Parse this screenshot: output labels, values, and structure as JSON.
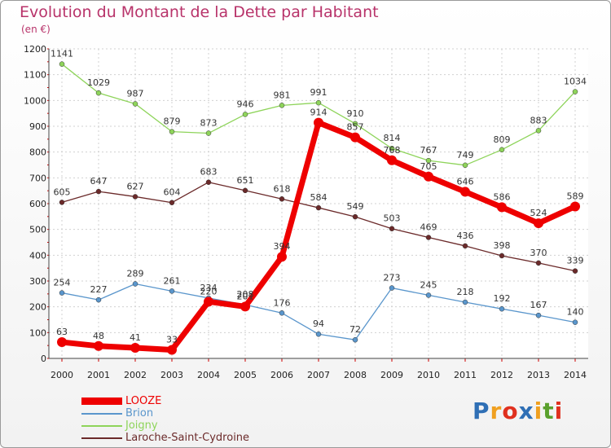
{
  "chart_data": {
    "type": "line",
    "title": "Evolution du Montant de la Dette par Habitant",
    "subtitle": "(en €)",
    "xlabel": "",
    "ylabel": "",
    "ylim": [
      0,
      1200
    ],
    "yticks": [
      0,
      100,
      200,
      300,
      400,
      500,
      600,
      700,
      800,
      900,
      1000,
      1100,
      1200
    ],
    "categories": [
      "2000",
      "2001",
      "2002",
      "2003",
      "2004",
      "2005",
      "2006",
      "2007",
      "2008",
      "2009",
      "2010",
      "2011",
      "2012",
      "2013",
      "2014"
    ],
    "series": [
      {
        "name": "Joigny",
        "color": "#8ed45a",
        "values": [
          1141,
          1029,
          987,
          879,
          873,
          946,
          981,
          991,
          910,
          814,
          767,
          749,
          809,
          883,
          1034
        ]
      },
      {
        "name": "Laroche-Saint-Cydroine",
        "color": "#6b2a2a",
        "values": [
          605,
          647,
          627,
          604,
          683,
          651,
          618,
          584,
          549,
          503,
          469,
          436,
          398,
          370,
          339
        ]
      },
      {
        "name": "Brion",
        "color": "#5a96cc",
        "values": [
          254,
          227,
          289,
          261,
          234,
          208,
          176,
          94,
          72,
          273,
          245,
          218,
          192,
          167,
          140
        ]
      },
      {
        "name": "LOOZE",
        "color": "#ee0000",
        "values": [
          63,
          48,
          41,
          33,
          220,
          201,
          394,
          914,
          857,
          768,
          705,
          646,
          586,
          524,
          589
        ]
      }
    ],
    "legend_order": [
      "LOOZE",
      "Brion",
      "Joigny",
      "Laroche-Saint-Cydroine"
    ],
    "legend_position": "bottom-left"
  },
  "brand": {
    "text": "Proxiti",
    "letters": [
      "P",
      "r",
      "o",
      "x",
      "i",
      "t",
      "i"
    ],
    "colors": [
      "#2f6fb5",
      "#f0a020",
      "#e0301e",
      "#2f6fb5",
      "#f0a020",
      "#5aa02c",
      "#e0301e"
    ]
  }
}
